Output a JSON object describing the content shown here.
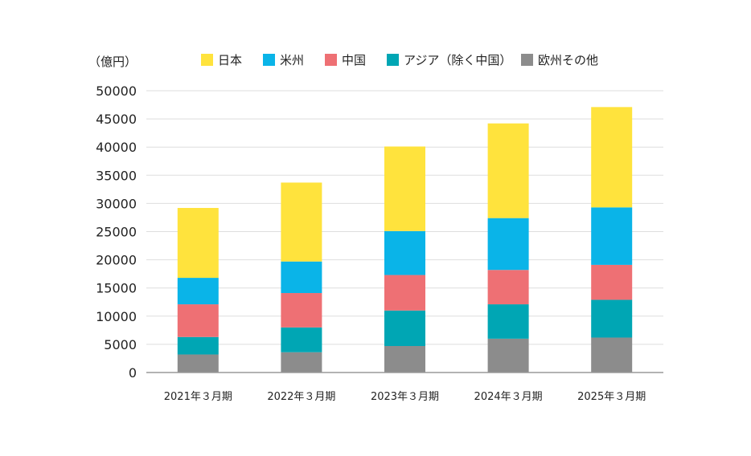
{
  "chart_data": {
    "type": "bar",
    "stacked": true,
    "unit_label": "（億円）",
    "categories": [
      "2021年３月期",
      "2022年３月期",
      "2023年３月期",
      "2024年３月期",
      "2025年３月期"
    ],
    "series": [
      {
        "name": "欧州その他",
        "color": "#8c8c8c",
        "values": [
          3200,
          3600,
          4700,
          6000,
          6200
        ]
      },
      {
        "name": "アジア（除く中国）",
        "color": "#00a6b4",
        "values": [
          3100,
          4400,
          6300,
          6100,
          6700
        ]
      },
      {
        "name": "中国",
        "color": "#ee7074",
        "values": [
          5800,
          6100,
          6300,
          6100,
          6200
        ]
      },
      {
        "name": "米州",
        "color": "#0ab4e8",
        "values": [
          4700,
          5600,
          7800,
          9200,
          10200
        ]
      },
      {
        "name": "日本",
        "color": "#ffe33d",
        "values": [
          12400,
          14000,
          15000,
          16800,
          17800
        ]
      }
    ],
    "legend_order": [
      4,
      3,
      2,
      1,
      0
    ],
    "y_ticks": [
      0,
      5000,
      10000,
      15000,
      20000,
      25000,
      30000,
      35000,
      40000,
      45000,
      50000
    ],
    "ylim": [
      0,
      50000
    ],
    "grid": true,
    "legend_position": "top"
  }
}
